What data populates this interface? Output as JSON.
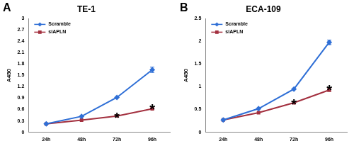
{
  "chart_data": [
    {
      "type": "line",
      "panel": "A",
      "title": "TE-1",
      "y_label": "A450",
      "categories": [
        "24h",
        "48h",
        "72h",
        "96h"
      ],
      "series": [
        {
          "name": "Scramble",
          "color": "#2f6fd6",
          "marker": "diamond",
          "values": [
            0.22,
            0.42,
            0.92,
            1.65
          ],
          "errors": [
            null,
            null,
            null,
            0.07
          ],
          "annotations": [
            null,
            null,
            null,
            null
          ]
        },
        {
          "name": "siAPLN",
          "color": "#a3303f",
          "marker": "square",
          "values": [
            0.22,
            0.32,
            0.43,
            0.62
          ],
          "errors": [
            null,
            null,
            null,
            0.02
          ],
          "annotations": [
            null,
            null,
            "*",
            "*"
          ]
        }
      ],
      "ylim": [
        0,
        3
      ],
      "yticks": [
        0,
        0.3,
        0.6,
        0.9,
        1.2,
        1.5,
        1.8,
        2.1,
        2.4,
        2.7,
        3
      ],
      "grid": false,
      "legend": "upper left"
    },
    {
      "type": "line",
      "panel": "B",
      "title": "ECA-109",
      "y_label": "A450",
      "categories": [
        "24h",
        "48h",
        "72h",
        "96h"
      ],
      "series": [
        {
          "name": "Scramble",
          "color": "#2f6fd6",
          "marker": "diamond",
          "values": [
            0.27,
            0.52,
            0.95,
            1.98
          ],
          "errors": [
            null,
            null,
            null,
            0.05
          ],
          "annotations": [
            null,
            null,
            null,
            null
          ]
        },
        {
          "name": "siAPLN",
          "color": "#a3303f",
          "marker": "square",
          "values": [
            0.27,
            0.43,
            0.65,
            0.93
          ],
          "errors": [
            null,
            null,
            null,
            0.03
          ],
          "annotations": [
            null,
            null,
            "*",
            "*"
          ]
        }
      ],
      "ylim": [
        0,
        2.5
      ],
      "yticks": [
        0,
        0.5,
        1,
        1.5,
        2,
        2.5
      ],
      "grid": false,
      "legend": "upper left"
    }
  ]
}
